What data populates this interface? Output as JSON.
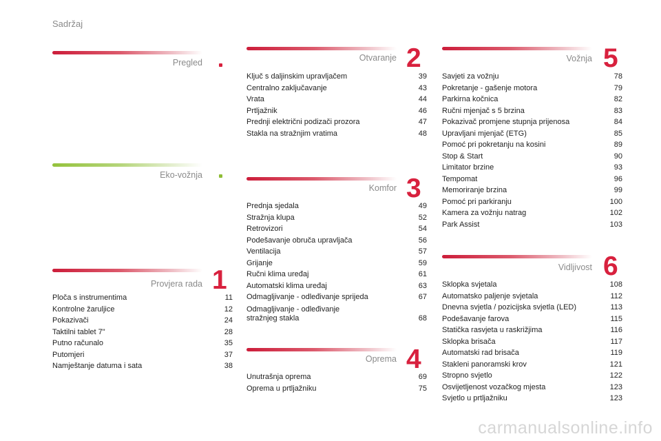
{
  "header": {
    "title": "Sadržaj"
  },
  "sections": {
    "pregled": {
      "title": "Pregled",
      "items": []
    },
    "eko": {
      "title": "Eko-vožnja",
      "items": []
    },
    "s1": {
      "title": "Provjera rada",
      "number": "1",
      "items": [
        {
          "label": "Ploča s instrumentima",
          "page": "11"
        },
        {
          "label": "Kontrolne žaruljice",
          "page": "12"
        },
        {
          "label": "Pokazivači",
          "page": "24"
        },
        {
          "label": "Taktilni tablet 7\"",
          "page": "28"
        },
        {
          "label": "Putno računalo",
          "page": "35"
        },
        {
          "label": "Putomjeri",
          "page": "37"
        },
        {
          "label": "Namještanje datuma i sata",
          "page": "38"
        }
      ]
    },
    "s2": {
      "title": "Otvaranje",
      "number": "2",
      "items": [
        {
          "label": "Ključ s daljinskim upravljačem",
          "page": "39"
        },
        {
          "label": "Centralno zaključavanje",
          "page": "43"
        },
        {
          "label": "Vrata",
          "page": "44"
        },
        {
          "label": "Prtljažnik",
          "page": "46"
        },
        {
          "label": "Prednji električni podizači prozora",
          "page": "47"
        },
        {
          "label": "Stakla na stražnjim vratima",
          "page": "48"
        }
      ]
    },
    "s3": {
      "title": "Komfor",
      "number": "3",
      "items": [
        {
          "label": "Prednja sjedala",
          "page": "49"
        },
        {
          "label": "Stražnja klupa",
          "page": "52"
        },
        {
          "label": "Retrovizori",
          "page": "54"
        },
        {
          "label": "Podešavanje obruča upravljača",
          "page": "56"
        },
        {
          "label": "Ventilacija",
          "page": "57"
        },
        {
          "label": "Grijanje",
          "page": "59"
        },
        {
          "label": "Ručni klima uređaj",
          "page": "61"
        },
        {
          "label": "Automatski klima uređaj",
          "page": "63"
        },
        {
          "label": "Odmagljivanje - odleđivanje sprijeda",
          "page": "67"
        }
      ],
      "last_item": {
        "label_line1": "Odmagljivanje - odleđivanje",
        "label_line2": "stražnjeg stakla",
        "page": "68"
      }
    },
    "s4": {
      "title": "Oprema",
      "number": "4",
      "items": [
        {
          "label": "Unutrašnja oprema",
          "page": "69"
        },
        {
          "label": "Oprema u prtljažniku",
          "page": "75"
        }
      ]
    },
    "s5": {
      "title": "Vožnja",
      "number": "5",
      "items": [
        {
          "label": "Savjeti za vožnju",
          "page": "78"
        },
        {
          "label": "Pokretanje - gašenje motora",
          "page": "79"
        },
        {
          "label": "Parkirna kočnica",
          "page": "82"
        },
        {
          "label": "Ručni mjenjač s 5 brzina",
          "page": "83"
        },
        {
          "label": "Pokazivač promjene stupnja prijenosa",
          "page": "84"
        },
        {
          "label": "Upravljani mjenjač (ETG)",
          "page": "85"
        },
        {
          "label": "Pomoć pri pokretanju na kosini",
          "page": "89"
        },
        {
          "label": "Stop & Start",
          "page": "90"
        },
        {
          "label": "Limitator brzine",
          "page": "93"
        },
        {
          "label": "Tempomat",
          "page": "96"
        },
        {
          "label": "Memoriranje brzina",
          "page": "99"
        },
        {
          "label": "Pomoć pri parkiranju",
          "page": "100"
        },
        {
          "label": "Kamera za vožnju natrag",
          "page": "102"
        },
        {
          "label": "Park Assist",
          "page": "103"
        }
      ]
    },
    "s6": {
      "title": "Vidljivost",
      "number": "6",
      "items": [
        {
          "label": "Sklopka svjetala",
          "page": "108"
        },
        {
          "label": "Automatsko paljenje svjetala",
          "page": "112"
        },
        {
          "label": "Dnevna svjetla / pozicijska svjetla (LED)",
          "page": "113"
        },
        {
          "label": "Podešavanje farova",
          "page": "115"
        },
        {
          "label": "Statička rasvjeta u raskrižjima",
          "page": "116"
        },
        {
          "label": "Sklopka brisača",
          "page": "117"
        },
        {
          "label": "Automatski rad brisača",
          "page": "119"
        },
        {
          "label": "Stakleni panoramski krov",
          "page": "121"
        },
        {
          "label": "Stropno svjetlo",
          "page": "122"
        },
        {
          "label": "Osvijetljenost vozačkog mjesta",
          "page": "123"
        },
        {
          "label": "Svjetlo u prtljažniku",
          "page": "123"
        }
      ]
    }
  },
  "watermark": "carmanualsonline.info"
}
